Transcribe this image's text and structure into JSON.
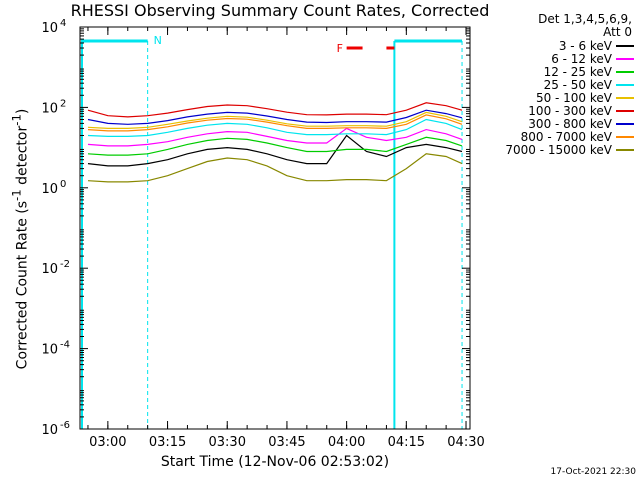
{
  "chart_data": {
    "type": "line",
    "title": "RHESSI Observing Summary Count Rates, Corrected",
    "xlabel": "Start Time (12-Nov-06 02:53:02)",
    "ylabel_main": "Corrected Count Rate (s",
    "ylabel_sup1": "-1",
    "ylabel_mid": " detector",
    "ylabel_sup2": "-1",
    "ylabel_end": ")",
    "y_scale": "log",
    "ylim": [
      1e-06,
      10000
    ],
    "xlim": [
      "02:53",
      "04:31"
    ],
    "x_ticks": [
      "03:00",
      "03:15",
      "03:30",
      "03:45",
      "04:00",
      "04:15",
      "04:30"
    ],
    "x_tick_minutes": [
      0,
      15,
      30,
      45,
      60,
      75,
      90
    ],
    "y_ticks": [
      {
        "base": "10",
        "exp": "-6",
        "value": 1e-06
      },
      {
        "base": "10",
        "exp": "-4",
        "value": 0.0001
      },
      {
        "base": "10",
        "exp": "-2",
        "value": 0.01
      },
      {
        "base": "10",
        "exp": "0",
        "value": 1
      },
      {
        "base": "10",
        "exp": "2",
        "value": 100
      },
      {
        "base": "10",
        "exp": "4",
        "value": 10000
      }
    ],
    "detectors": "Det 1,3,4,5,6,9,",
    "attenuator": "Att 0",
    "series": [
      {
        "name": "3 - 6 keV",
        "color": "#000000",
        "x": [
          "02:55",
          "03:00",
          "03:05",
          "03:10",
          "03:15",
          "03:20",
          "03:25",
          "03:30",
          "03:35",
          "03:40",
          "03:45",
          "03:50",
          "03:55",
          "04:00",
          "04:05",
          "04:10",
          "04:15",
          "04:20",
          "04:25",
          "04:29"
        ],
        "values": [
          4,
          3.5,
          3.5,
          4,
          5,
          7,
          9,
          10,
          9,
          7,
          5,
          4,
          4,
          20,
          8,
          6,
          10,
          12,
          10,
          8
        ]
      },
      {
        "name": "6 - 12 keV",
        "color": "#ff00ff",
        "x": [
          "02:55",
          "03:00",
          "03:05",
          "03:10",
          "03:15",
          "03:20",
          "03:25",
          "03:30",
          "03:35",
          "03:40",
          "03:45",
          "03:50",
          "03:55",
          "04:00",
          "04:05",
          "04:10",
          "04:15",
          "04:20",
          "04:25",
          "04:29"
        ],
        "values": [
          12,
          11,
          11,
          12,
          14,
          18,
          22,
          25,
          24,
          19,
          15,
          13,
          13,
          30,
          18,
          15,
          18,
          28,
          22,
          16
        ]
      },
      {
        "name": "12 - 25 keV",
        "color": "#00cc00",
        "x": [
          "02:55",
          "03:00",
          "03:05",
          "03:10",
          "03:15",
          "03:20",
          "03:25",
          "03:30",
          "03:35",
          "03:40",
          "03:45",
          "03:50",
          "03:55",
          "04:00",
          "04:05",
          "04:10",
          "04:15",
          "04:20",
          "04:25",
          "04:29"
        ],
        "values": [
          7,
          6.5,
          6.5,
          7,
          9,
          12,
          15,
          17,
          16,
          13,
          10,
          8,
          8,
          9,
          9,
          8,
          12,
          18,
          15,
          11
        ]
      },
      {
        "name": "25 - 50 keV",
        "color": "#00e5ee",
        "x": [
          "02:55",
          "03:00",
          "03:05",
          "03:10",
          "03:15",
          "03:20",
          "03:25",
          "03:30",
          "03:35",
          "03:40",
          "03:45",
          "03:50",
          "03:55",
          "04:00",
          "04:05",
          "04:10",
          "04:15",
          "04:20",
          "04:25",
          "04:29"
        ],
        "values": [
          20,
          19,
          19,
          20,
          24,
          30,
          36,
          40,
          38,
          31,
          24,
          21,
          21,
          22,
          22,
          21,
          28,
          50,
          40,
          28
        ]
      },
      {
        "name": "50 - 100 keV",
        "color": "#e8c000",
        "x": [
          "02:55",
          "03:00",
          "03:05",
          "03:10",
          "03:15",
          "03:20",
          "03:25",
          "03:30",
          "03:35",
          "03:40",
          "03:45",
          "03:50",
          "03:55",
          "04:00",
          "04:05",
          "04:10",
          "04:15",
          "04:20",
          "04:25",
          "04:29"
        ],
        "values": [
          32,
          30,
          30,
          32,
          38,
          46,
          54,
          60,
          57,
          48,
          39,
          34,
          34,
          35,
          35,
          34,
          44,
          75,
          60,
          44
        ]
      },
      {
        "name": "100 - 300 keV",
        "color": "#dd0000",
        "x": [
          "02:55",
          "03:00",
          "03:05",
          "03:10",
          "03:15",
          "03:20",
          "03:25",
          "03:30",
          "03:35",
          "03:40",
          "03:45",
          "03:50",
          "03:55",
          "04:00",
          "04:05",
          "04:10",
          "04:15",
          "04:20",
          "04:25",
          "04:29"
        ],
        "values": [
          85,
          62,
          58,
          62,
          72,
          88,
          105,
          115,
          110,
          93,
          76,
          66,
          65,
          68,
          68,
          66,
          85,
          130,
          110,
          85
        ]
      },
      {
        "name": "300 - 800 keV",
        "color": "#0000cc",
        "x": [
          "02:55",
          "03:00",
          "03:05",
          "03:10",
          "03:15",
          "03:20",
          "03:25",
          "03:30",
          "03:35",
          "03:40",
          "03:45",
          "03:50",
          "03:55",
          "04:00",
          "04:05",
          "04:10",
          "04:15",
          "04:20",
          "04:25",
          "04:29"
        ],
        "values": [
          50,
          40,
          38,
          40,
          47,
          58,
          68,
          75,
          72,
          61,
          50,
          43,
          42,
          44,
          44,
          43,
          56,
          85,
          70,
          55
        ]
      },
      {
        "name": "800 - 7000 keV",
        "color": "#ff8800",
        "x": [
          "02:55",
          "03:00",
          "03:05",
          "03:10",
          "03:15",
          "03:20",
          "03:25",
          "03:30",
          "03:35",
          "03:40",
          "03:45",
          "03:50",
          "03:55",
          "04:00",
          "04:05",
          "04:10",
          "04:15",
          "04:20",
          "04:25",
          "04:29"
        ],
        "values": [
          28,
          26,
          26,
          28,
          33,
          41,
          48,
          53,
          51,
          43,
          35,
          30,
          30,
          31,
          31,
          30,
          38,
          65,
          52,
          38
        ]
      },
      {
        "name": "7000 - 15000 keV",
        "color": "#888800",
        "x": [
          "02:55",
          "03:00",
          "03:05",
          "03:10",
          "03:15",
          "03:20",
          "03:25",
          "03:30",
          "03:35",
          "03:40",
          "03:45",
          "03:50",
          "03:55",
          "04:00",
          "04:05",
          "04:10",
          "04:15",
          "04:20",
          "04:25",
          "04:29"
        ],
        "values": [
          1.5,
          1.4,
          1.4,
          1.5,
          2,
          3,
          4.5,
          5.5,
          5,
          3.5,
          2,
          1.5,
          1.5,
          1.6,
          1.6,
          1.5,
          3,
          7,
          6,
          4
        ]
      }
    ],
    "annotations": [
      {
        "text": "N",
        "color": "#00e5ee"
      },
      {
        "text": "F",
        "color": "#ee0000"
      }
    ],
    "grid": false,
    "legend_position": "right"
  },
  "footer": {
    "generated": "17-Oct-2021 22:30"
  },
  "colors": {
    "background": "#ffffff",
    "axes": "#000000",
    "night": "#00e5ee",
    "flare": "#ee0000"
  }
}
